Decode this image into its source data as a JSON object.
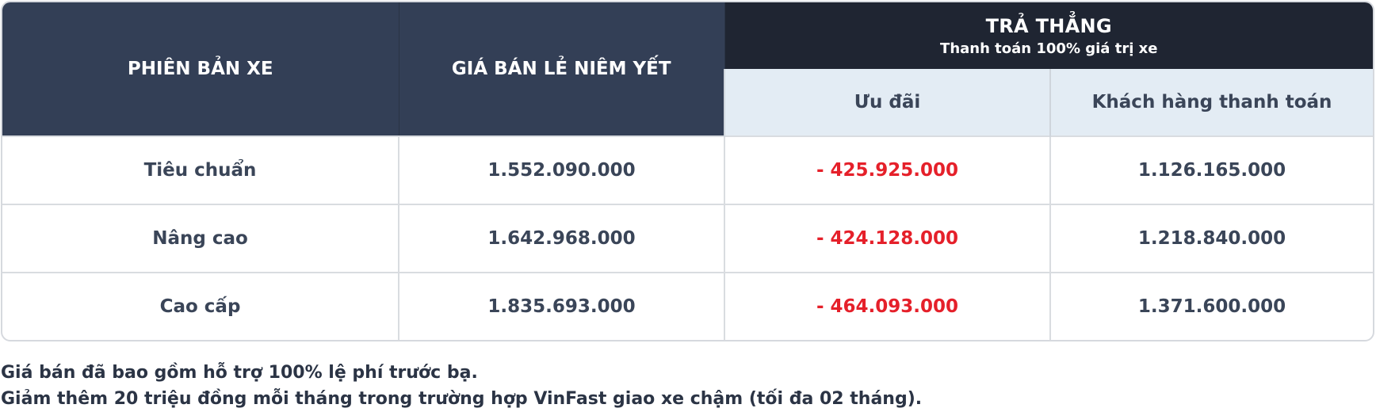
{
  "table": {
    "headers": {
      "version": "PHIÊN BẢN XE",
      "list_price": "GIÁ BÁN LẺ NIÊM YẾT",
      "group_title": "TRẢ THẲNG",
      "group_subtitle": "Thanh toán 100% giá trị xe",
      "discount": "Ưu đãi",
      "customer_pays": "Khách hàng thanh toán"
    },
    "rows": [
      {
        "version": "Tiêu chuẩn",
        "list_price": "1.552.090.000",
        "discount": "- 425.925.000",
        "customer_pays": "1.126.165.000"
      },
      {
        "version": "Nâng cao",
        "list_price": "1.642.968.000",
        "discount": "- 424.128.000",
        "customer_pays": "1.218.840.000"
      },
      {
        "version": "Cao cấp",
        "list_price": "1.835.693.000",
        "discount": "- 464.093.000",
        "customer_pays": "1.371.600.000"
      }
    ]
  },
  "notes": [
    "Giá bán đã bao gồm hỗ trợ 100% lệ phí trước bạ.",
    "Giảm thêm 20 triệu đồng mỗi tháng trong trường hợp VinFast giao xe chậm (tối đa 02 tháng)."
  ],
  "colors": {
    "header_dark": "#333f56",
    "header_darker": "#1f2532",
    "header_light": "#e3ecf4",
    "discount_red": "#e5202a",
    "text": "#3a4558"
  }
}
